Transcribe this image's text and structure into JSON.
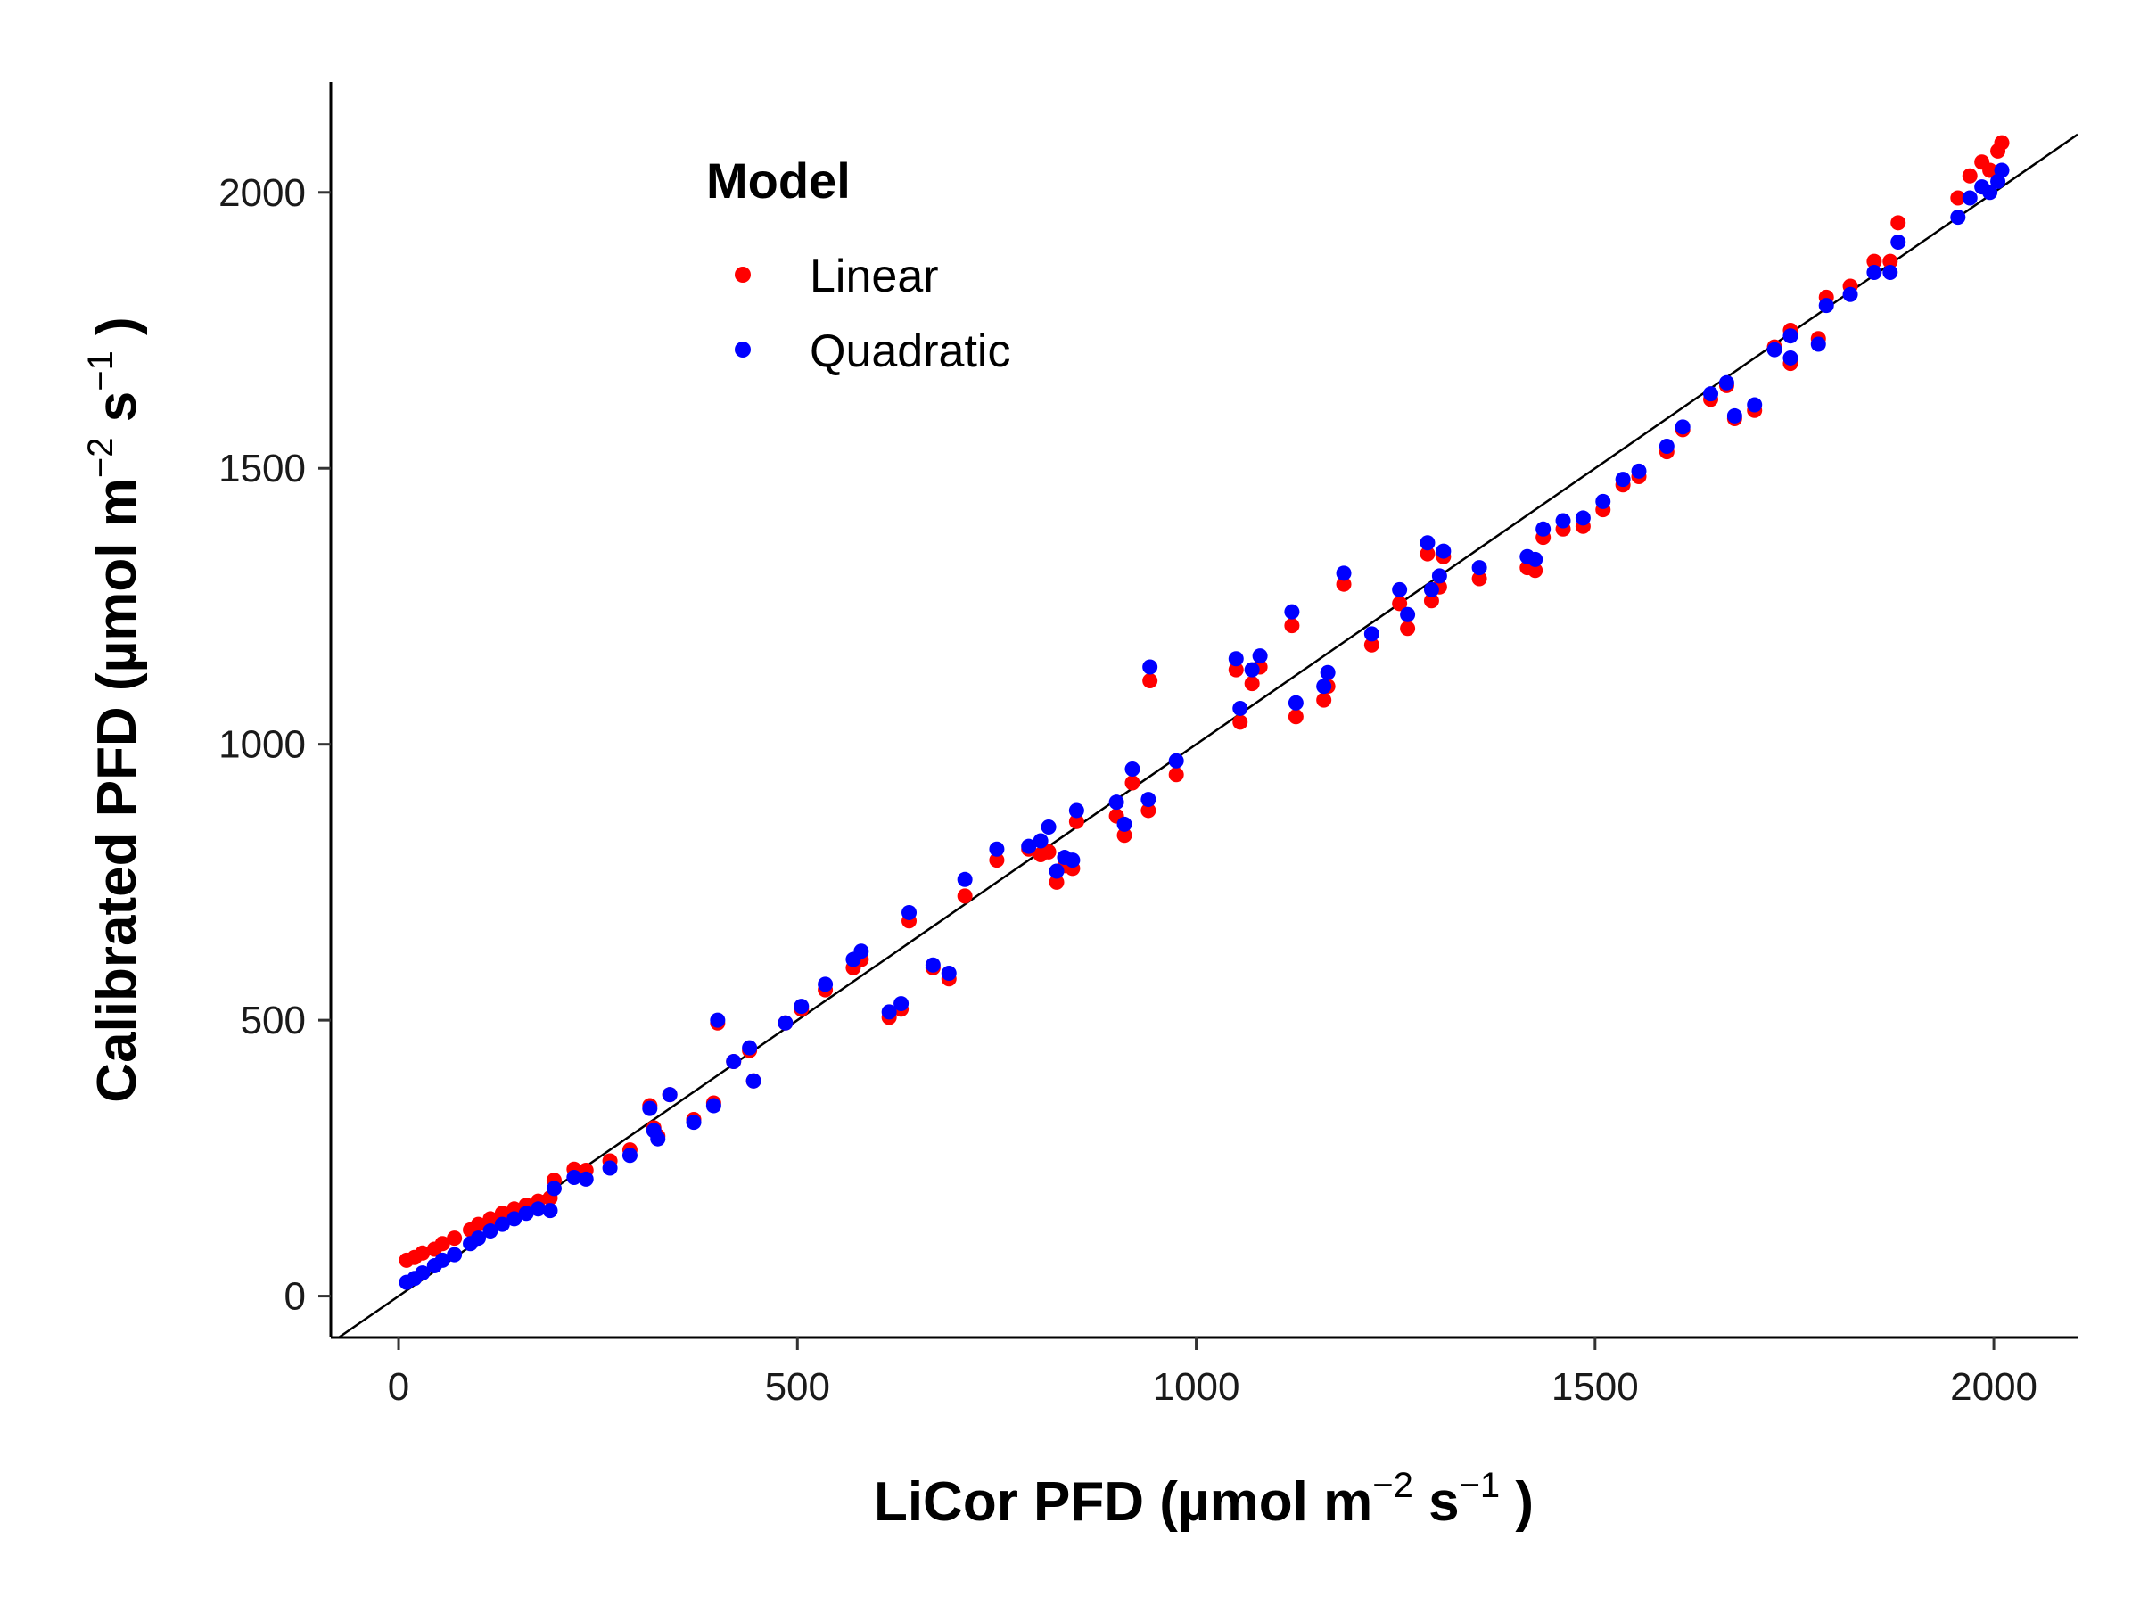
{
  "chart_data": {
    "type": "scatter",
    "title": "",
    "xlabel": {
      "main": "LiCor PFD (µmol  m",
      "sup1": "−2",
      "mid": " s",
      "sup2": "−1",
      "end": " )"
    },
    "ylabel": {
      "main": "Calibrated PFD (µmol  m",
      "sup1": "−2",
      "mid": " s",
      "sup2": "−1",
      "end": " )"
    },
    "xlim": [
      -85,
      2105
    ],
    "ylim": [
      -75,
      2200
    ],
    "x_ticks": [
      0,
      500,
      1000,
      1500,
      2000
    ],
    "y_ticks": [
      0,
      500,
      1000,
      1500,
      2000
    ],
    "grid": false,
    "reference_line": {
      "type": "identity",
      "slope": 1,
      "intercept": 0
    },
    "legend": {
      "title": "Model",
      "placement": "top-left"
    },
    "series": [
      {
        "name": "Linear",
        "color": "#ff0000",
        "points": [
          [
            10,
            65
          ],
          [
            20,
            70
          ],
          [
            30,
            78
          ],
          [
            45,
            85
          ],
          [
            55,
            95
          ],
          [
            70,
            105
          ],
          [
            90,
            120
          ],
          [
            100,
            130
          ],
          [
            115,
            140
          ],
          [
            130,
            150
          ],
          [
            145,
            158
          ],
          [
            160,
            165
          ],
          [
            175,
            172
          ],
          [
            190,
            178
          ],
          [
            195,
            210
          ],
          [
            220,
            230
          ],
          [
            235,
            228
          ],
          [
            265,
            245
          ],
          [
            290,
            265
          ],
          [
            315,
            345
          ],
          [
            320,
            305
          ],
          [
            325,
            290
          ],
          [
            340,
            365
          ],
          [
            370,
            320
          ],
          [
            395,
            350
          ],
          [
            400,
            495
          ],
          [
            420,
            425
          ],
          [
            440,
            445
          ],
          [
            445,
            390
          ],
          [
            485,
            495
          ],
          [
            505,
            520
          ],
          [
            535,
            555
          ],
          [
            570,
            595
          ],
          [
            580,
            610
          ],
          [
            615,
            505
          ],
          [
            630,
            520
          ],
          [
            640,
            680
          ],
          [
            670,
            595
          ],
          [
            690,
            575
          ],
          [
            710,
            725
          ],
          [
            750,
            790
          ],
          [
            790,
            810
          ],
          [
            805,
            800
          ],
          [
            815,
            805
          ],
          [
            825,
            750
          ],
          [
            835,
            780
          ],
          [
            845,
            775
          ],
          [
            850,
            860
          ],
          [
            900,
            870
          ],
          [
            910,
            835
          ],
          [
            920,
            930
          ],
          [
            940,
            880
          ],
          [
            942,
            1115
          ],
          [
            975,
            945
          ],
          [
            1050,
            1135
          ],
          [
            1055,
            1040
          ],
          [
            1070,
            1110
          ],
          [
            1080,
            1140
          ],
          [
            1120,
            1215
          ],
          [
            1125,
            1050
          ],
          [
            1160,
            1080
          ],
          [
            1165,
            1105
          ],
          [
            1185,
            1290
          ],
          [
            1220,
            1180
          ],
          [
            1255,
            1255
          ],
          [
            1265,
            1210
          ],
          [
            1290,
            1345
          ],
          [
            1295,
            1260
          ],
          [
            1305,
            1285
          ],
          [
            1310,
            1340
          ],
          [
            1355,
            1300
          ],
          [
            1415,
            1320
          ],
          [
            1425,
            1315
          ],
          [
            1435,
            1375
          ],
          [
            1460,
            1390
          ],
          [
            1485,
            1395
          ],
          [
            1510,
            1425
          ],
          [
            1535,
            1470
          ],
          [
            1555,
            1485
          ],
          [
            1590,
            1530
          ],
          [
            1610,
            1570
          ],
          [
            1645,
            1625
          ],
          [
            1665,
            1650
          ],
          [
            1675,
            1590
          ],
          [
            1700,
            1605
          ],
          [
            1725,
            1720
          ],
          [
            1745,
            1750
          ],
          [
            1745,
            1690
          ],
          [
            1780,
            1735
          ],
          [
            1790,
            1810
          ],
          [
            1820,
            1830
          ],
          [
            1850,
            1875
          ],
          [
            1870,
            1875
          ],
          [
            1880,
            1945
          ],
          [
            1955,
            1990
          ],
          [
            1970,
            2030
          ],
          [
            1985,
            2055
          ],
          [
            1995,
            2040
          ],
          [
            2005,
            2075
          ],
          [
            2010,
            2090
          ]
        ]
      },
      {
        "name": "Quadratic",
        "color": "#0000ff",
        "points": [
          [
            10,
            25
          ],
          [
            20,
            32
          ],
          [
            30,
            42
          ],
          [
            45,
            55
          ],
          [
            55,
            65
          ],
          [
            70,
            75
          ],
          [
            90,
            95
          ],
          [
            100,
            105
          ],
          [
            115,
            118
          ],
          [
            130,
            130
          ],
          [
            145,
            140
          ],
          [
            160,
            150
          ],
          [
            175,
            158
          ],
          [
            190,
            155
          ],
          [
            195,
            195
          ],
          [
            220,
            215
          ],
          [
            235,
            212
          ],
          [
            265,
            232
          ],
          [
            290,
            255
          ],
          [
            315,
            340
          ],
          [
            320,
            300
          ],
          [
            325,
            285
          ],
          [
            340,
            365
          ],
          [
            370,
            315
          ],
          [
            395,
            345
          ],
          [
            400,
            500
          ],
          [
            420,
            425
          ],
          [
            440,
            450
          ],
          [
            445,
            390
          ],
          [
            485,
            495
          ],
          [
            505,
            525
          ],
          [
            535,
            565
          ],
          [
            570,
            610
          ],
          [
            580,
            625
          ],
          [
            615,
            515
          ],
          [
            630,
            530
          ],
          [
            640,
            695
          ],
          [
            670,
            600
          ],
          [
            690,
            585
          ],
          [
            710,
            755
          ],
          [
            750,
            810
          ],
          [
            790,
            815
          ],
          [
            805,
            825
          ],
          [
            815,
            850
          ],
          [
            825,
            770
          ],
          [
            835,
            795
          ],
          [
            845,
            790
          ],
          [
            850,
            880
          ],
          [
            900,
            895
          ],
          [
            910,
            855
          ],
          [
            920,
            955
          ],
          [
            940,
            900
          ],
          [
            942,
            1140
          ],
          [
            975,
            970
          ],
          [
            1050,
            1155
          ],
          [
            1055,
            1065
          ],
          [
            1070,
            1135
          ],
          [
            1080,
            1160
          ],
          [
            1120,
            1240
          ],
          [
            1125,
            1075
          ],
          [
            1160,
            1105
          ],
          [
            1165,
            1130
          ],
          [
            1185,
            1310
          ],
          [
            1220,
            1200
          ],
          [
            1255,
            1280
          ],
          [
            1265,
            1235
          ],
          [
            1290,
            1365
          ],
          [
            1295,
            1280
          ],
          [
            1305,
            1305
          ],
          [
            1310,
            1350
          ],
          [
            1355,
            1320
          ],
          [
            1415,
            1340
          ],
          [
            1425,
            1335
          ],
          [
            1435,
            1390
          ],
          [
            1460,
            1405
          ],
          [
            1485,
            1410
          ],
          [
            1510,
            1440
          ],
          [
            1535,
            1480
          ],
          [
            1555,
            1495
          ],
          [
            1590,
            1540
          ],
          [
            1610,
            1575
          ],
          [
            1645,
            1635
          ],
          [
            1665,
            1655
          ],
          [
            1675,
            1595
          ],
          [
            1700,
            1615
          ],
          [
            1725,
            1715
          ],
          [
            1745,
            1740
          ],
          [
            1745,
            1700
          ],
          [
            1780,
            1725
          ],
          [
            1790,
            1795
          ],
          [
            1820,
            1815
          ],
          [
            1850,
            1855
          ],
          [
            1870,
            1855
          ],
          [
            1880,
            1910
          ],
          [
            1955,
            1955
          ],
          [
            1970,
            1990
          ],
          [
            1985,
            2010
          ],
          [
            1995,
            2000
          ],
          [
            2005,
            2020
          ],
          [
            2010,
            2040
          ]
        ]
      }
    ]
  }
}
